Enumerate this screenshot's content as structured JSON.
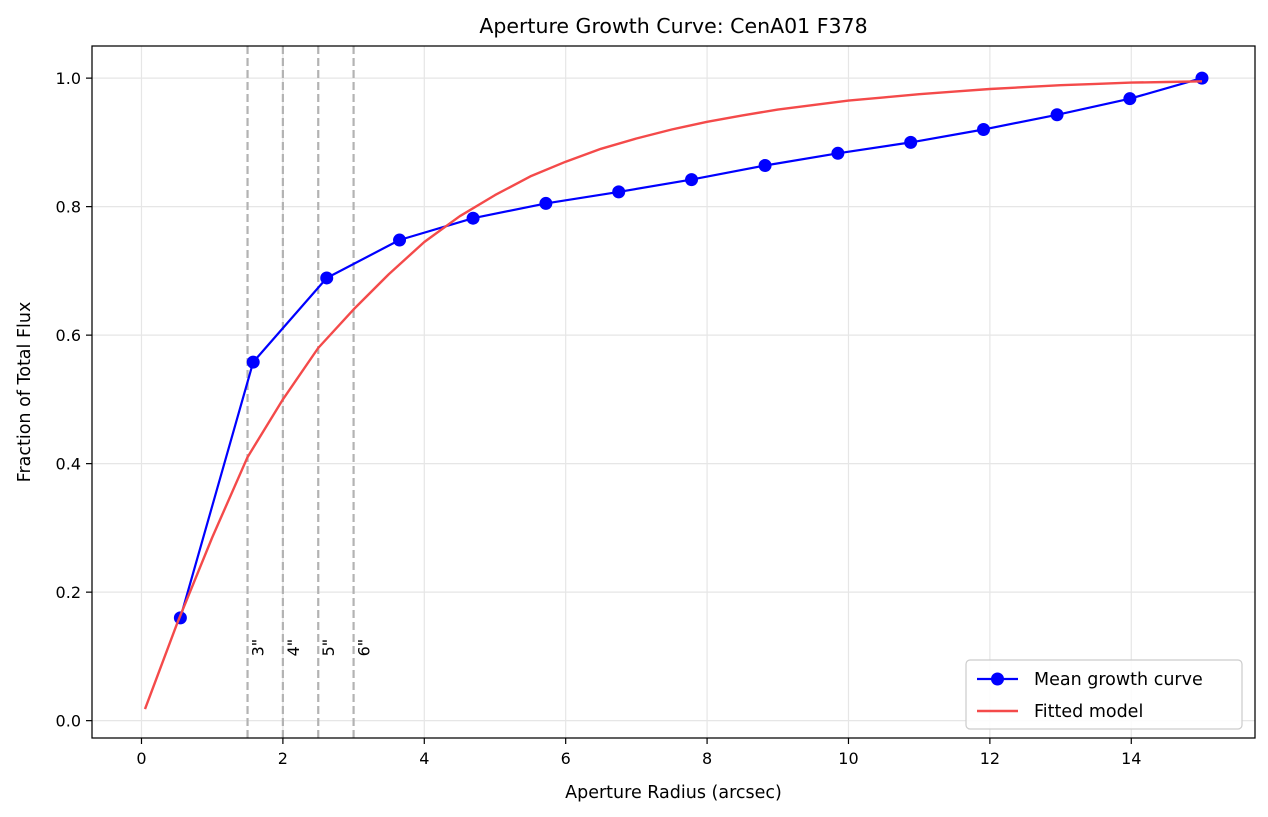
{
  "chart_data": {
    "type": "line",
    "title": "Aperture Growth Curve: CenA01 F378",
    "xlabel": "Aperture Radius (arcsec)",
    "ylabel": "Fraction of Total Flux",
    "xlim": [
      -0.7,
      15.75
    ],
    "ylim": [
      -0.027,
      1.05
    ],
    "xticks": [
      0,
      2,
      4,
      6,
      8,
      10,
      12,
      14
    ],
    "xtick_labels": [
      "0",
      "2",
      "4",
      "6",
      "8",
      "10",
      "12",
      "14"
    ],
    "yticks": [
      0.0,
      0.2,
      0.4,
      0.6,
      0.8,
      1.0
    ],
    "ytick_labels": [
      "0.0",
      "0.2",
      "0.4",
      "0.6",
      "0.8",
      "1.0"
    ],
    "grid": true,
    "legend_position": "lower-right",
    "series": [
      {
        "name": "Mean growth curve",
        "kind": "line-marker",
        "color": "#0000ff",
        "x": [
          0.55,
          1.58,
          2.62,
          3.65,
          4.69,
          5.72,
          6.75,
          7.78,
          8.82,
          9.85,
          10.88,
          11.91,
          12.95,
          13.98,
          15.0
        ],
        "y": [
          0.16,
          0.558,
          0.689,
          0.748,
          0.782,
          0.805,
          0.823,
          0.842,
          0.864,
          0.883,
          0.9,
          0.92,
          0.943,
          0.968,
          1.0
        ]
      },
      {
        "name": "Fitted model",
        "kind": "line",
        "color": "#f44a4a",
        "x": [
          0.05,
          0.5,
          1.0,
          1.5,
          2.0,
          2.5,
          3.0,
          3.5,
          4.0,
          4.5,
          5.0,
          5.5,
          6.0,
          6.5,
          7.0,
          7.5,
          8.0,
          8.5,
          9.0,
          9.5,
          10.0,
          10.5,
          11.0,
          11.5,
          12.0,
          12.5,
          13.0,
          13.5,
          14.0,
          14.5,
          15.0
        ],
        "y": [
          0.018,
          0.15,
          0.285,
          0.41,
          0.5,
          0.58,
          0.64,
          0.695,
          0.745,
          0.785,
          0.818,
          0.847,
          0.87,
          0.89,
          0.906,
          0.92,
          0.932,
          0.942,
          0.951,
          0.958,
          0.965,
          0.97,
          0.975,
          0.979,
          0.983,
          0.986,
          0.989,
          0.991,
          0.993,
          0.994,
          0.995
        ]
      }
    ],
    "vlines": [
      {
        "x": 1.5,
        "label": "3\"",
        "color": "#b3b3b3",
        "label_y": 0.1
      },
      {
        "x": 2.0,
        "label": "4\"",
        "color": "#b3b3b3",
        "label_y": 0.1
      },
      {
        "x": 2.5,
        "label": "5\"",
        "color": "#b3b3b3",
        "label_y": 0.1
      },
      {
        "x": 3.0,
        "label": "6\"",
        "color": "#b3b3b3",
        "label_y": 0.1
      }
    ]
  }
}
